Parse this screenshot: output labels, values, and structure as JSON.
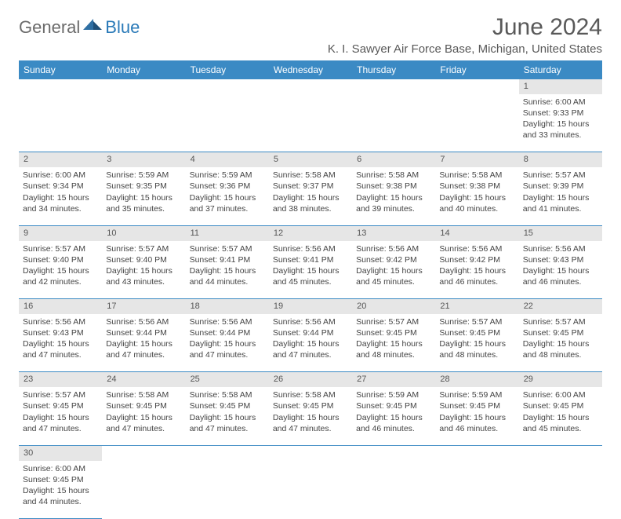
{
  "brand": {
    "general": "General",
    "blue": "Blue"
  },
  "title": "June 2024",
  "location": "K. I. Sawyer Air Force Base, Michigan, United States",
  "colors": {
    "header_bg": "#3b8ac4",
    "header_text": "#ffffff",
    "daynum_bg": "#e6e6e6",
    "cell_border": "#3b8ac4",
    "title_color": "#595959",
    "logo_gray": "#6b6b6b",
    "logo_blue": "#2a7ab8",
    "body_text": "#444444",
    "background": "#ffffff"
  },
  "typography": {
    "title_fontsize": 30,
    "location_fontsize": 15,
    "day_header_fontsize": 12,
    "daynum_fontsize": 11,
    "cell_fontsize": 10.5,
    "font_family": "Arial"
  },
  "days_of_week": [
    "Sunday",
    "Monday",
    "Tuesday",
    "Wednesday",
    "Thursday",
    "Friday",
    "Saturday"
  ],
  "weeks": [
    [
      null,
      null,
      null,
      null,
      null,
      null,
      {
        "n": "1",
        "sunrise": "Sunrise: 6:00 AM",
        "sunset": "Sunset: 9:33 PM",
        "daylight1": "Daylight: 15 hours",
        "daylight2": "and 33 minutes."
      }
    ],
    [
      {
        "n": "2",
        "sunrise": "Sunrise: 6:00 AM",
        "sunset": "Sunset: 9:34 PM",
        "daylight1": "Daylight: 15 hours",
        "daylight2": "and 34 minutes."
      },
      {
        "n": "3",
        "sunrise": "Sunrise: 5:59 AM",
        "sunset": "Sunset: 9:35 PM",
        "daylight1": "Daylight: 15 hours",
        "daylight2": "and 35 minutes."
      },
      {
        "n": "4",
        "sunrise": "Sunrise: 5:59 AM",
        "sunset": "Sunset: 9:36 PM",
        "daylight1": "Daylight: 15 hours",
        "daylight2": "and 37 minutes."
      },
      {
        "n": "5",
        "sunrise": "Sunrise: 5:58 AM",
        "sunset": "Sunset: 9:37 PM",
        "daylight1": "Daylight: 15 hours",
        "daylight2": "and 38 minutes."
      },
      {
        "n": "6",
        "sunrise": "Sunrise: 5:58 AM",
        "sunset": "Sunset: 9:38 PM",
        "daylight1": "Daylight: 15 hours",
        "daylight2": "and 39 minutes."
      },
      {
        "n": "7",
        "sunrise": "Sunrise: 5:58 AM",
        "sunset": "Sunset: 9:38 PM",
        "daylight1": "Daylight: 15 hours",
        "daylight2": "and 40 minutes."
      },
      {
        "n": "8",
        "sunrise": "Sunrise: 5:57 AM",
        "sunset": "Sunset: 9:39 PM",
        "daylight1": "Daylight: 15 hours",
        "daylight2": "and 41 minutes."
      }
    ],
    [
      {
        "n": "9",
        "sunrise": "Sunrise: 5:57 AM",
        "sunset": "Sunset: 9:40 PM",
        "daylight1": "Daylight: 15 hours",
        "daylight2": "and 42 minutes."
      },
      {
        "n": "10",
        "sunrise": "Sunrise: 5:57 AM",
        "sunset": "Sunset: 9:40 PM",
        "daylight1": "Daylight: 15 hours",
        "daylight2": "and 43 minutes."
      },
      {
        "n": "11",
        "sunrise": "Sunrise: 5:57 AM",
        "sunset": "Sunset: 9:41 PM",
        "daylight1": "Daylight: 15 hours",
        "daylight2": "and 44 minutes."
      },
      {
        "n": "12",
        "sunrise": "Sunrise: 5:56 AM",
        "sunset": "Sunset: 9:41 PM",
        "daylight1": "Daylight: 15 hours",
        "daylight2": "and 45 minutes."
      },
      {
        "n": "13",
        "sunrise": "Sunrise: 5:56 AM",
        "sunset": "Sunset: 9:42 PM",
        "daylight1": "Daylight: 15 hours",
        "daylight2": "and 45 minutes."
      },
      {
        "n": "14",
        "sunrise": "Sunrise: 5:56 AM",
        "sunset": "Sunset: 9:42 PM",
        "daylight1": "Daylight: 15 hours",
        "daylight2": "and 46 minutes."
      },
      {
        "n": "15",
        "sunrise": "Sunrise: 5:56 AM",
        "sunset": "Sunset: 9:43 PM",
        "daylight1": "Daylight: 15 hours",
        "daylight2": "and 46 minutes."
      }
    ],
    [
      {
        "n": "16",
        "sunrise": "Sunrise: 5:56 AM",
        "sunset": "Sunset: 9:43 PM",
        "daylight1": "Daylight: 15 hours",
        "daylight2": "and 47 minutes."
      },
      {
        "n": "17",
        "sunrise": "Sunrise: 5:56 AM",
        "sunset": "Sunset: 9:44 PM",
        "daylight1": "Daylight: 15 hours",
        "daylight2": "and 47 minutes."
      },
      {
        "n": "18",
        "sunrise": "Sunrise: 5:56 AM",
        "sunset": "Sunset: 9:44 PM",
        "daylight1": "Daylight: 15 hours",
        "daylight2": "and 47 minutes."
      },
      {
        "n": "19",
        "sunrise": "Sunrise: 5:56 AM",
        "sunset": "Sunset: 9:44 PM",
        "daylight1": "Daylight: 15 hours",
        "daylight2": "and 47 minutes."
      },
      {
        "n": "20",
        "sunrise": "Sunrise: 5:57 AM",
        "sunset": "Sunset: 9:45 PM",
        "daylight1": "Daylight: 15 hours",
        "daylight2": "and 48 minutes."
      },
      {
        "n": "21",
        "sunrise": "Sunrise: 5:57 AM",
        "sunset": "Sunset: 9:45 PM",
        "daylight1": "Daylight: 15 hours",
        "daylight2": "and 48 minutes."
      },
      {
        "n": "22",
        "sunrise": "Sunrise: 5:57 AM",
        "sunset": "Sunset: 9:45 PM",
        "daylight1": "Daylight: 15 hours",
        "daylight2": "and 48 minutes."
      }
    ],
    [
      {
        "n": "23",
        "sunrise": "Sunrise: 5:57 AM",
        "sunset": "Sunset: 9:45 PM",
        "daylight1": "Daylight: 15 hours",
        "daylight2": "and 47 minutes."
      },
      {
        "n": "24",
        "sunrise": "Sunrise: 5:58 AM",
        "sunset": "Sunset: 9:45 PM",
        "daylight1": "Daylight: 15 hours",
        "daylight2": "and 47 minutes."
      },
      {
        "n": "25",
        "sunrise": "Sunrise: 5:58 AM",
        "sunset": "Sunset: 9:45 PM",
        "daylight1": "Daylight: 15 hours",
        "daylight2": "and 47 minutes."
      },
      {
        "n": "26",
        "sunrise": "Sunrise: 5:58 AM",
        "sunset": "Sunset: 9:45 PM",
        "daylight1": "Daylight: 15 hours",
        "daylight2": "and 47 minutes."
      },
      {
        "n": "27",
        "sunrise": "Sunrise: 5:59 AM",
        "sunset": "Sunset: 9:45 PM",
        "daylight1": "Daylight: 15 hours",
        "daylight2": "and 46 minutes."
      },
      {
        "n": "28",
        "sunrise": "Sunrise: 5:59 AM",
        "sunset": "Sunset: 9:45 PM",
        "daylight1": "Daylight: 15 hours",
        "daylight2": "and 46 minutes."
      },
      {
        "n": "29",
        "sunrise": "Sunrise: 6:00 AM",
        "sunset": "Sunset: 9:45 PM",
        "daylight1": "Daylight: 15 hours",
        "daylight2": "and 45 minutes."
      }
    ],
    [
      {
        "n": "30",
        "sunrise": "Sunrise: 6:00 AM",
        "sunset": "Sunset: 9:45 PM",
        "daylight1": "Daylight: 15 hours",
        "daylight2": "and 44 minutes."
      },
      null,
      null,
      null,
      null,
      null,
      null
    ]
  ]
}
